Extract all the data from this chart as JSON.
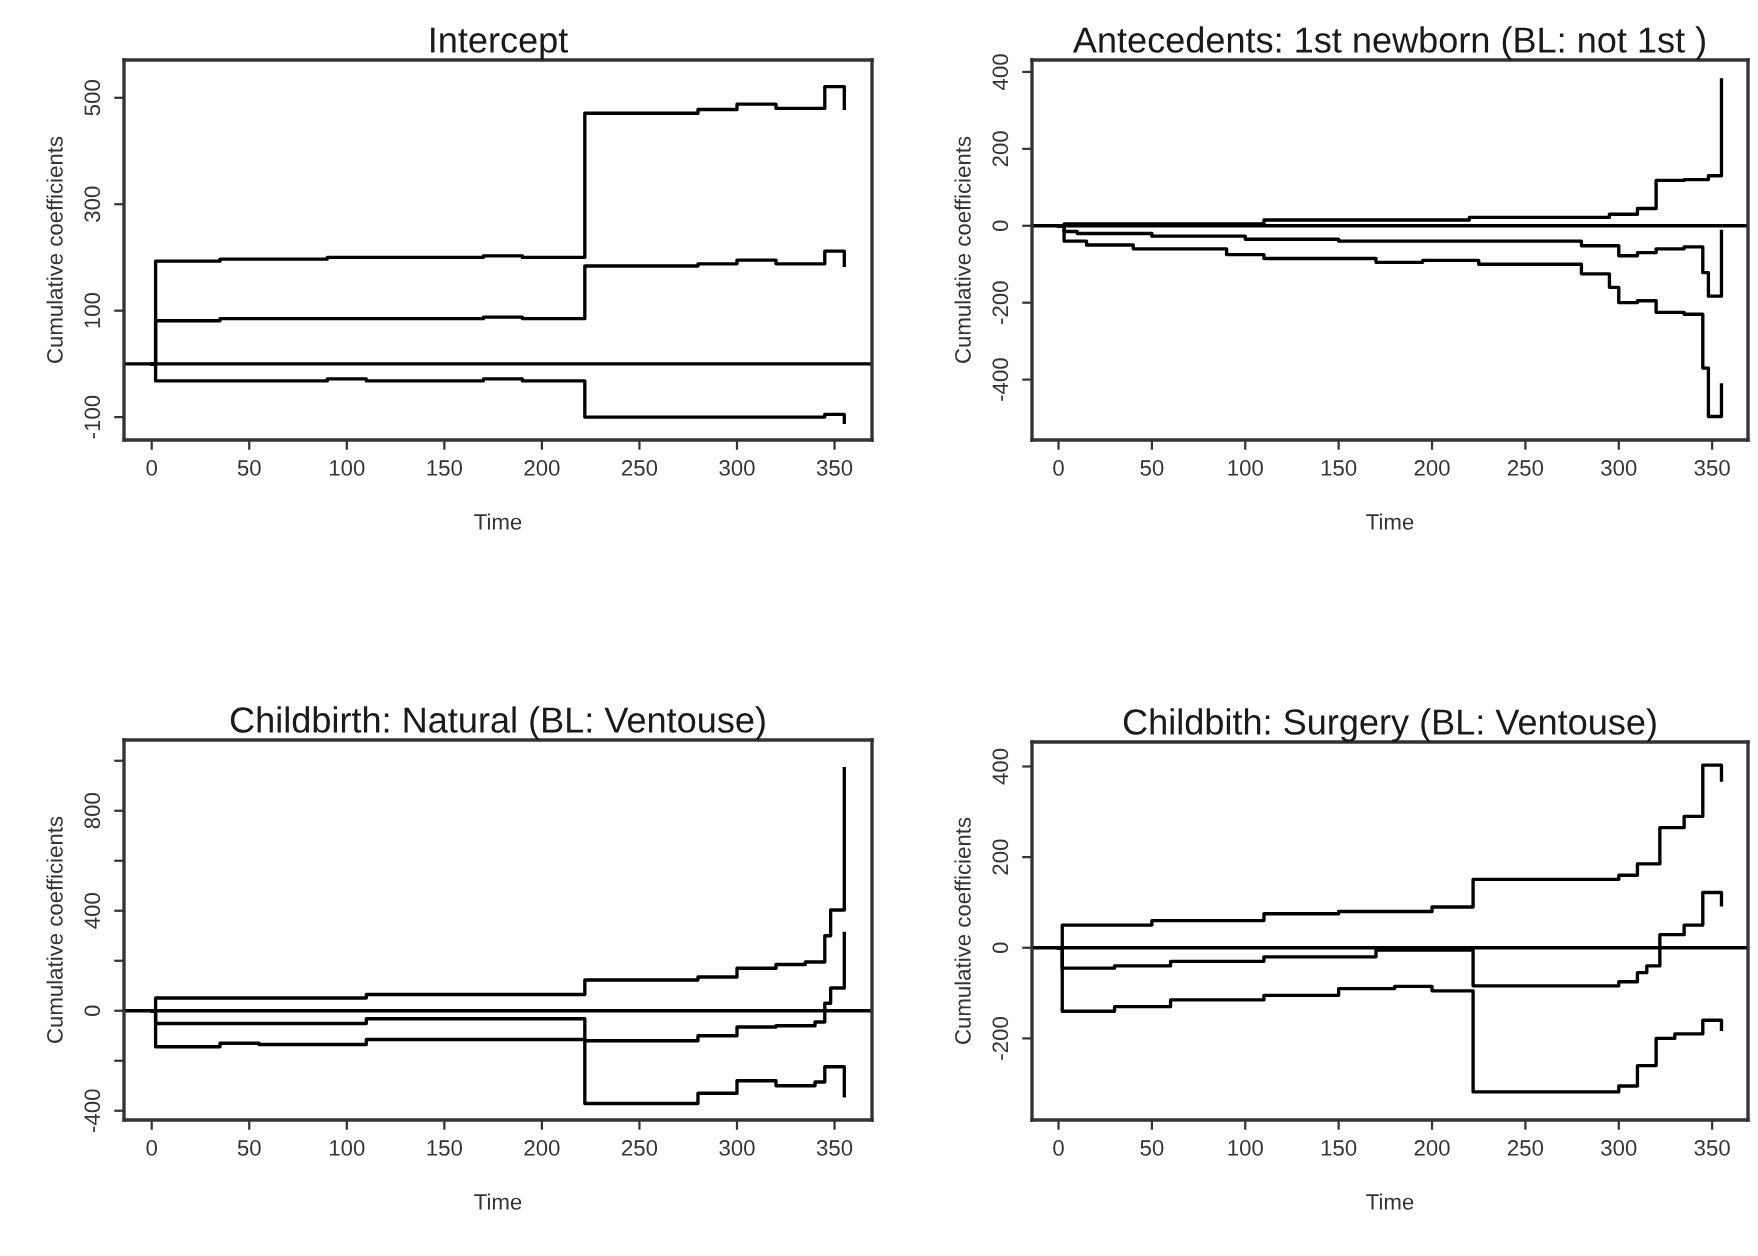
{
  "chart_data": [
    {
      "type": "step",
      "title": "Intercept",
      "xlabel": "Time",
      "ylabel": "Cumulative coefficients",
      "xlim": [
        -14.2,
        369.2
      ],
      "ylim": [
        -143,
        571
      ],
      "xticks": [
        0,
        50,
        100,
        150,
        200,
        250,
        300,
        350
      ],
      "yticks": [
        {
          "value": -100,
          "label": "-100"
        },
        100,
        300,
        500
      ],
      "grid": false,
      "ref_lines": [
        {
          "axis": "y",
          "value": 0,
          "color": "#000000"
        }
      ],
      "series": [
        {
          "color": "#000000",
          "x": [
            0,
            2,
            35,
            90,
            170,
            190,
            222,
            280,
            300,
            320,
            345,
            355
          ],
          "values": [
            0,
            193,
            197,
            200,
            203,
            200,
            471,
            478,
            488,
            480,
            521,
            480
          ]
        },
        {
          "color": "#000000",
          "x": [
            0,
            2,
            35,
            170,
            190,
            222,
            280,
            300,
            320,
            345,
            355
          ],
          "values": [
            0,
            81,
            85,
            88,
            85,
            184,
            188,
            195,
            188,
            212,
            185
          ]
        },
        {
          "color": "#000000",
          "x": [
            0,
            2,
            90,
            110,
            170,
            190,
            222,
            300,
            345,
            355
          ],
          "values": [
            0,
            -32,
            -28,
            -32,
            -28,
            -32,
            -100,
            -100,
            -95,
            -110
          ]
        }
      ]
    },
    {
      "type": "step",
      "title": "Antecedents: 1st newborn (BL: not 1st )",
      "xlabel": "Time",
      "ylabel": "Cumulative coefficients",
      "xlim": [
        -14.2,
        369.2
      ],
      "ylim": [
        -557,
        431
      ],
      "xticks": [
        0,
        50,
        100,
        150,
        200,
        250,
        300,
        350
      ],
      "yticks": [
        {
          "value": -400,
          "label": "-400"
        },
        {
          "value": -200,
          "label": "-200"
        },
        0,
        200,
        400
      ],
      "grid": false,
      "ref_lines": [
        {
          "axis": "y",
          "value": 0,
          "color": "#000000"
        }
      ],
      "series": [
        {
          "color": "#000000",
          "x": [
            0,
            3,
            10,
            50,
            100,
            150,
            280,
            300,
            310,
            320,
            335,
            345,
            348,
            355
          ],
          "values": [
            0,
            -15,
            -20,
            -27,
            -35,
            -40,
            -52,
            -78,
            -70,
            -60,
            -55,
            -122,
            -183,
            -15
          ]
        },
        {
          "color": "#000000",
          "x": [
            0,
            3,
            110,
            220,
            295,
            310,
            320,
            335,
            348,
            355
          ],
          "values": [
            0,
            5,
            15,
            22,
            30,
            45,
            118,
            120,
            130,
            379
          ]
        },
        {
          "color": "#000000",
          "x": [
            0,
            3,
            15,
            40,
            90,
            110,
            170,
            195,
            225,
            280,
            295,
            300,
            310,
            320,
            335,
            345,
            348,
            355
          ],
          "values": [
            0,
            -40,
            -50,
            -60,
            -75,
            -85,
            -95,
            -90,
            -100,
            -125,
            -160,
            -200,
            -195,
            -225,
            -230,
            -370,
            -496,
            -414
          ]
        }
      ]
    },
    {
      "type": "step",
      "title": "Childbirth: Natural (BL: Ventouse)",
      "xlabel": "Time",
      "ylabel": "Cumulative coefficients",
      "xlim": [
        -14.2,
        369.2
      ],
      "ylim": [
        -437,
        1083
      ],
      "xticks": [
        0,
        50,
        100,
        150,
        200,
        250,
        300,
        350
      ],
      "yticks": [
        {
          "value": -400,
          "label": "-400"
        },
        {
          "value": -200,
          "label": null
        },
        0,
        {
          "value": 200,
          "label": null
        },
        400,
        {
          "value": 600,
          "label": null
        },
        800,
        {
          "value": 1000,
          "label": null
        }
      ],
      "grid": false,
      "ref_lines": [
        {
          "axis": "y",
          "value": 0,
          "color": "#000000"
        }
      ],
      "series": [
        {
          "color": "#000000",
          "x": [
            0,
            2,
            110,
            222,
            280,
            300,
            320,
            340,
            345,
            348,
            355
          ],
          "values": [
            0,
            -51,
            -32,
            -120,
            -100,
            -65,
            -60,
            -45,
            30,
            91,
            309
          ]
        },
        {
          "color": "#000000",
          "x": [
            0,
            2,
            110,
            222,
            280,
            300,
            320,
            335,
            345,
            348,
            355
          ],
          "values": [
            0,
            51,
            65,
            123,
            135,
            170,
            185,
            195,
            300,
            403,
            968
          ]
        },
        {
          "color": "#000000",
          "x": [
            0,
            2,
            35,
            55,
            110,
            222,
            280,
            300,
            320,
            340,
            345,
            355
          ],
          "values": [
            0,
            -144,
            -130,
            -135,
            -115,
            -371,
            -330,
            -280,
            -300,
            -285,
            -224,
            -340
          ]
        }
      ]
    },
    {
      "type": "step",
      "title": "Childbith: Surgery (BL: Ventouse)",
      "xlabel": "Time",
      "ylabel": "Cumulative coefficients",
      "xlim": [
        -14.2,
        369.2
      ],
      "ylim": [
        -380,
        454
      ],
      "xticks": [
        0,
        50,
        100,
        150,
        200,
        250,
        300,
        350
      ],
      "yticks": [
        {
          "value": -200,
          "label": "-200"
        },
        0,
        200,
        400
      ],
      "grid": false,
      "ref_lines": [
        {
          "axis": "y",
          "value": 0,
          "color": "#000000"
        }
      ],
      "series": [
        {
          "color": "#000000",
          "x": [
            0,
            2,
            30,
            60,
            110,
            170,
            222,
            300,
            310,
            315,
            322,
            335,
            345,
            355
          ],
          "values": [
            0,
            -45,
            -40,
            -30,
            -20,
            -5,
            -84,
            -75,
            -55,
            -40,
            29,
            50,
            122,
            95
          ]
        },
        {
          "color": "#000000",
          "x": [
            0,
            2,
            50,
            110,
            150,
            200,
            222,
            300,
            310,
            322,
            335,
            345,
            355
          ],
          "values": [
            0,
            50,
            60,
            75,
            80,
            90,
            151,
            160,
            185,
            265,
            290,
            403,
            370
          ]
        },
        {
          "color": "#000000",
          "x": [
            0,
            2,
            30,
            60,
            110,
            150,
            180,
            200,
            222,
            300,
            310,
            320,
            330,
            345,
            355
          ],
          "values": [
            0,
            -140,
            -130,
            -115,
            -105,
            -90,
            -85,
            -95,
            -318,
            -305,
            -260,
            -200,
            -190,
            -160,
            -180
          ]
        }
      ]
    }
  ]
}
